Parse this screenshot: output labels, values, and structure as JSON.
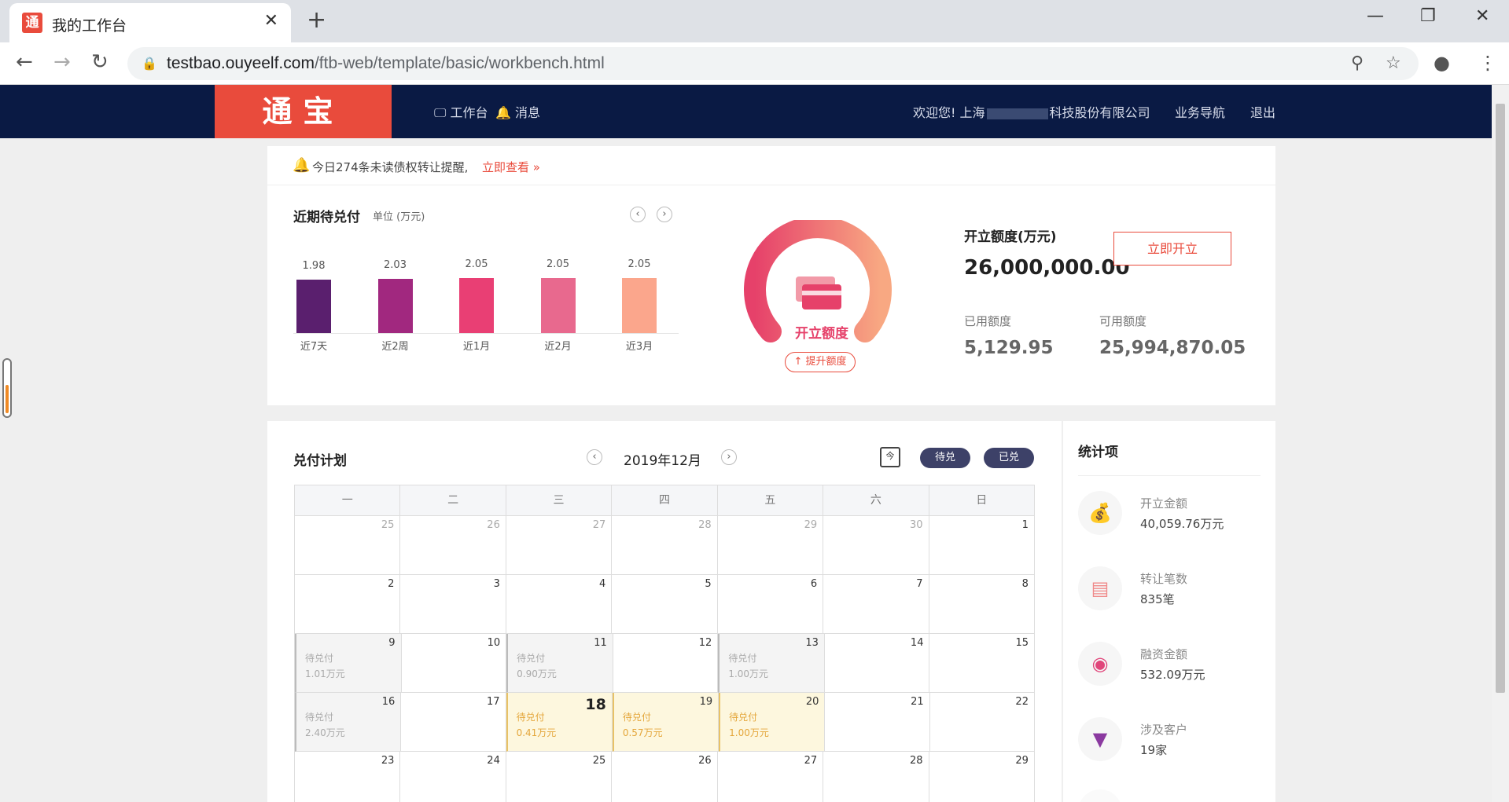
{
  "browser": {
    "tab_title": "我的工作台",
    "url_host": "testbao.ouyeelf.com",
    "url_path": "/ftb-web/template/basic/workbench.html"
  },
  "header": {
    "logo": "通宝",
    "nav_workbench": "工作台",
    "nav_messages": "消息",
    "welcome": "欢迎您! 上海",
    "company_suffix": "科技股份有限公司",
    "nav_business": "业务导航",
    "nav_logout": "退出"
  },
  "notice": {
    "text": "今日274条未读债权转让提醒,",
    "link": "立即查看 »"
  },
  "pending": {
    "title": "近期待兑付",
    "unit": "单位 (万元)",
    "bars": [
      {
        "label": "近7天",
        "value": "1.98",
        "color": "#5a1f6e"
      },
      {
        "label": "近2周",
        "value": "2.03",
        "color": "#a1287f"
      },
      {
        "label": "近1月",
        "value": "2.05",
        "color": "#e93f74"
      },
      {
        "label": "近2月",
        "value": "2.05",
        "color": "#e8698e"
      },
      {
        "label": "近3月",
        "value": "2.05",
        "color": "#fba68c"
      }
    ]
  },
  "quota": {
    "gauge_label": "开立额度",
    "raise_button": "↑ 提升额度",
    "title": "开立额度(万元)",
    "amount": "26,000,000.00",
    "open_button": "立即开立",
    "used_label": "已用额度",
    "used_value": "5,129.95",
    "available_label": "可用额度",
    "available_value": "25,994,870.05"
  },
  "calendar": {
    "title": "兑付计划",
    "month": "2019年12月",
    "today_icon": "今",
    "pending_button": "待兑",
    "paid_button": "已兑",
    "weekdays": [
      "一",
      "二",
      "三",
      "四",
      "五",
      "六",
      "日"
    ],
    "weeks": [
      [
        {
          "d": "25",
          "o": true
        },
        {
          "d": "26",
          "o": true
        },
        {
          "d": "27",
          "o": true
        },
        {
          "d": "28",
          "o": true
        },
        {
          "d": "29",
          "o": true
        },
        {
          "d": "30",
          "o": true
        },
        {
          "d": "1"
        }
      ],
      [
        {
          "d": "2"
        },
        {
          "d": "3"
        },
        {
          "d": "4"
        },
        {
          "d": "5"
        },
        {
          "d": "6"
        },
        {
          "d": "7"
        },
        {
          "d": "8"
        }
      ],
      [
        {
          "d": "9",
          "s": "grey",
          "e1": "待兑付",
          "e2": "1.01万元"
        },
        {
          "d": "10"
        },
        {
          "d": "11",
          "s": "grey",
          "e1": "待兑付",
          "e2": "0.90万元"
        },
        {
          "d": "12"
        },
        {
          "d": "13",
          "s": "grey",
          "e1": "待兑付",
          "e2": "1.00万元"
        },
        {
          "d": "14"
        },
        {
          "d": "15"
        }
      ],
      [
        {
          "d": "16",
          "s": "grey",
          "e1": "待兑付",
          "e2": "2.40万元"
        },
        {
          "d": "17"
        },
        {
          "d": "18",
          "s": "yellow",
          "t": true,
          "e1": "待兑付",
          "e2": "0.41万元"
        },
        {
          "d": "19",
          "s": "yellow",
          "e1": "待兑付",
          "e2": "0.57万元"
        },
        {
          "d": "20",
          "s": "yellow",
          "e1": "待兑付",
          "e2": "1.00万元"
        },
        {
          "d": "21"
        },
        {
          "d": "22"
        }
      ],
      [
        {
          "d": "23"
        },
        {
          "d": "24"
        },
        {
          "d": "25"
        },
        {
          "d": "26"
        },
        {
          "d": "27"
        },
        {
          "d": "28"
        },
        {
          "d": "29"
        }
      ]
    ]
  },
  "stats": {
    "title": "统计项",
    "items": [
      {
        "label": "开立金额",
        "value": "40,059.76万元",
        "icon": "coins-icon",
        "glyph": "💰",
        "color": "#f0b07a"
      },
      {
        "label": "转让笔数",
        "value": "835笔",
        "icon": "transfer-card-icon",
        "glyph": "▤",
        "color": "#f08a8a"
      },
      {
        "label": "融资金额",
        "value": "532.09万元",
        "icon": "coin-stack-icon",
        "glyph": "◉",
        "color": "#e0457a"
      },
      {
        "label": "涉及客户",
        "value": "19家",
        "icon": "customer-tie-icon",
        "glyph": "▼",
        "color": "#8b3aa0"
      }
    ]
  }
}
